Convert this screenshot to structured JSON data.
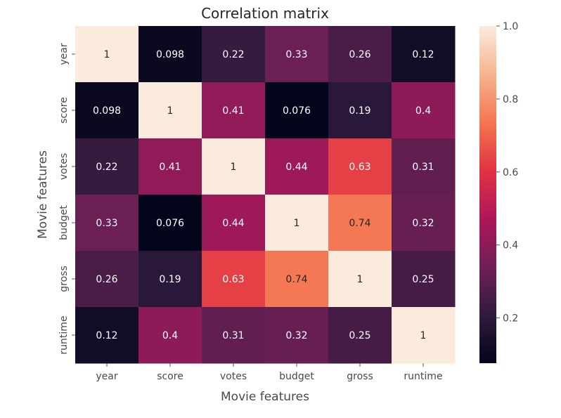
{
  "chart_data": {
    "type": "heatmap",
    "title": "Correlation matrix",
    "xlabel": "Movie features",
    "ylabel": "Movie features",
    "x_categories": [
      "year",
      "score",
      "votes",
      "budget",
      "gross",
      "runtime"
    ],
    "y_categories": [
      "year",
      "score",
      "votes",
      "budget",
      "gross",
      "runtime"
    ],
    "values": [
      [
        1,
        0.098,
        0.22,
        0.33,
        0.26,
        0.12
      ],
      [
        0.098,
        1,
        0.41,
        0.076,
        0.19,
        0.4
      ],
      [
        0.22,
        0.41,
        1,
        0.44,
        0.63,
        0.31
      ],
      [
        0.33,
        0.076,
        0.44,
        1,
        0.74,
        0.32
      ],
      [
        0.26,
        0.19,
        0.63,
        0.74,
        1,
        0.25
      ],
      [
        0.12,
        0.4,
        0.31,
        0.32,
        0.25,
        1
      ]
    ],
    "annotations": [
      [
        "1",
        "0.098",
        "0.22",
        "0.33",
        "0.26",
        "0.12"
      ],
      [
        "0.098",
        "1",
        "0.41",
        "0.076",
        "0.19",
        "0.4"
      ],
      [
        "0.22",
        "0.41",
        "1",
        "0.44",
        "0.63",
        "0.31"
      ],
      [
        "0.33",
        "0.076",
        "0.44",
        "1",
        "0.74",
        "0.32"
      ],
      [
        "0.26",
        "0.19",
        "0.63",
        "0.74",
        "1",
        "0.25"
      ],
      [
        "0.12",
        "0.4",
        "0.31",
        "0.32",
        "0.25",
        "1"
      ]
    ],
    "colorbar": {
      "range": [
        0.076,
        1.0
      ],
      "ticks": [
        0.2,
        0.4,
        0.6,
        0.8,
        1.0
      ],
      "tick_labels": [
        "0.2",
        "0.4",
        "0.6",
        "0.8",
        "1.0"
      ]
    },
    "colormap": "rocket",
    "colormap_stops": [
      "#03051a",
      "#2f1b3e",
      "#701f57",
      "#ad1759",
      "#e13342",
      "#f37651",
      "#f6b48f",
      "#faebdd"
    ],
    "grid": false
  }
}
